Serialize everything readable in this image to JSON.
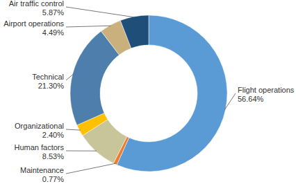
{
  "chart_data": {
    "type": "donut",
    "categories": [
      "Flight operations",
      "Maintenance",
      "Human factors",
      "Organizational",
      "Technical",
      "Airport operations",
      "Air traffic control"
    ],
    "values": [
      56.64,
      0.77,
      8.53,
      2.4,
      21.3,
      4.49,
      5.87
    ],
    "value_labels": [
      "56.64%",
      "0.77%",
      "8.53%",
      "2.40%",
      "21.30%",
      "4.49%",
      "5.87%"
    ],
    "colors": [
      "#5b9bd5",
      "#ed7d31",
      "#c9c59a",
      "#ffc000",
      "#4e7fac",
      "#c9b07c",
      "#1f4e79"
    ],
    "data_labels": true
  }
}
